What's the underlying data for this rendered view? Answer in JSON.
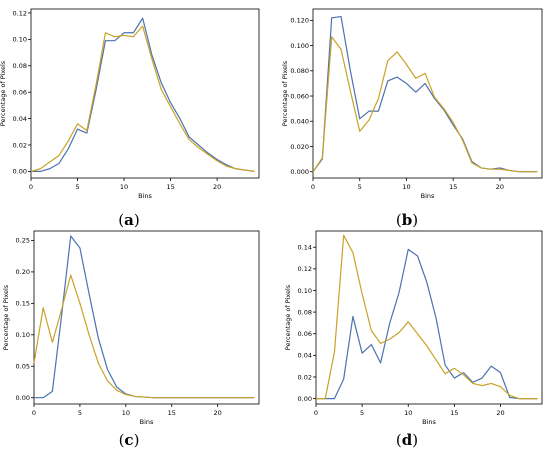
{
  "panel_labels": [
    "a",
    "b",
    "c",
    "d"
  ],
  "colors": {
    "series_1": "#4c72b0",
    "series_2": "#c9a227"
  },
  "chart_data": [
    {
      "type": "line",
      "panel": "a",
      "xlabel": "Bins",
      "ylabel": "Percentage of Pixels",
      "xlim": [
        0,
        24.5
      ],
      "ylim": [
        -0.005,
        0.123
      ],
      "xticks": [
        0,
        5,
        10,
        15,
        20
      ],
      "yticks": [
        0.0,
        0.02,
        0.04,
        0.06,
        0.08,
        0.1,
        0.12
      ],
      "ytick_decimals": 2,
      "x": [
        0,
        1,
        2,
        3,
        4,
        5,
        6,
        7,
        8,
        9,
        10,
        11,
        12,
        13,
        14,
        15,
        16,
        17,
        18,
        19,
        20,
        21,
        22,
        23,
        24
      ],
      "series": [
        {
          "values": [
            0.0,
            0.0,
            0.002,
            0.006,
            0.017,
            0.032,
            0.029,
            0.062,
            0.099,
            0.099,
            0.105,
            0.105,
            0.116,
            0.088,
            0.067,
            0.052,
            0.04,
            0.026,
            0.02,
            0.014,
            0.009,
            0.005,
            0.002,
            0.001,
            0.0
          ]
        },
        {
          "values": [
            0.0,
            0.002,
            0.007,
            0.012,
            0.023,
            0.036,
            0.031,
            0.066,
            0.105,
            0.102,
            0.103,
            0.102,
            0.11,
            0.085,
            0.062,
            0.049,
            0.036,
            0.024,
            0.018,
            0.013,
            0.008,
            0.004,
            0.002,
            0.001,
            0.0
          ]
        }
      ]
    },
    {
      "type": "line",
      "panel": "b",
      "xlabel": "Bins",
      "ylabel": "Percentage of Pixels",
      "xlim": [
        0,
        24.5
      ],
      "ylim": [
        -0.005,
        0.129
      ],
      "xticks": [
        0,
        5,
        10,
        15,
        20
      ],
      "yticks": [
        0.0,
        0.02,
        0.04,
        0.06,
        0.08,
        0.1,
        0.12
      ],
      "ytick_decimals": 3,
      "x": [
        0,
        1,
        2,
        3,
        4,
        5,
        6,
        7,
        8,
        9,
        10,
        11,
        12,
        13,
        14,
        15,
        16,
        17,
        18,
        19,
        20,
        21,
        22,
        23,
        24
      ],
      "series": [
        {
          "values": [
            0.0,
            0.01,
            0.122,
            0.123,
            0.08,
            0.042,
            0.048,
            0.048,
            0.072,
            0.075,
            0.07,
            0.063,
            0.07,
            0.058,
            0.049,
            0.037,
            0.026,
            0.008,
            0.003,
            0.002,
            0.003,
            0.001,
            0.0,
            0.0,
            0.0
          ]
        },
        {
          "values": [
            0.0,
            0.011,
            0.107,
            0.097,
            0.064,
            0.032,
            0.041,
            0.058,
            0.088,
            0.095,
            0.085,
            0.074,
            0.078,
            0.059,
            0.05,
            0.039,
            0.025,
            0.007,
            0.003,
            0.002,
            0.002,
            0.001,
            0.0,
            0.0,
            0.0
          ]
        }
      ]
    },
    {
      "type": "line",
      "panel": "c",
      "xlabel": "Bins",
      "ylabel": "Percentage of Pixels",
      "xlim": [
        0,
        24.5
      ],
      "ylim": [
        -0.01,
        0.265
      ],
      "xticks": [
        0,
        5,
        10,
        15,
        20
      ],
      "yticks": [
        0.0,
        0.05,
        0.1,
        0.15,
        0.2,
        0.25
      ],
      "ytick_decimals": 2,
      "x": [
        0,
        1,
        2,
        3,
        4,
        5,
        6,
        7,
        8,
        9,
        10,
        11,
        12,
        13,
        14,
        15,
        16,
        17,
        18,
        19,
        20,
        21,
        22,
        23,
        24
      ],
      "series": [
        {
          "values": [
            0.0,
            0.0,
            0.01,
            0.13,
            0.257,
            0.238,
            0.165,
            0.095,
            0.045,
            0.017,
            0.006,
            0.002,
            0.001,
            0.0,
            0.0,
            0.0,
            0.0,
            0.0,
            0.0,
            0.0,
            0.0,
            0.0,
            0.0,
            0.0,
            0.0
          ]
        },
        {
          "values": [
            0.055,
            0.143,
            0.088,
            0.14,
            0.195,
            0.15,
            0.1,
            0.055,
            0.027,
            0.012,
            0.005,
            0.002,
            0.001,
            0.0,
            0.0,
            0.0,
            0.0,
            0.0,
            0.0,
            0.0,
            0.0,
            0.0,
            0.0,
            0.0,
            0.0
          ]
        }
      ]
    },
    {
      "type": "line",
      "panel": "d",
      "xlabel": "Bins",
      "ylabel": "Percentage of Pixels",
      "xlim": [
        0,
        24.5
      ],
      "ylim": [
        -0.005,
        0.155
      ],
      "xticks": [
        0,
        5,
        10,
        15,
        20
      ],
      "yticks": [
        0.0,
        0.02,
        0.04,
        0.06,
        0.08,
        0.1,
        0.12,
        0.14
      ],
      "ytick_decimals": 2,
      "x": [
        0,
        1,
        2,
        3,
        4,
        5,
        6,
        7,
        8,
        9,
        10,
        11,
        12,
        13,
        14,
        15,
        16,
        17,
        18,
        19,
        20,
        21,
        22,
        23,
        24
      ],
      "series": [
        {
          "values": [
            0.0,
            0.0,
            0.0,
            0.018,
            0.076,
            0.042,
            0.05,
            0.033,
            0.07,
            0.098,
            0.138,
            0.132,
            0.108,
            0.075,
            0.031,
            0.019,
            0.024,
            0.015,
            0.019,
            0.03,
            0.024,
            0.001,
            0.0,
            0.0,
            0.0
          ]
        },
        {
          "values": [
            0.0,
            0.0,
            0.043,
            0.151,
            0.135,
            0.097,
            0.063,
            0.051,
            0.055,
            0.061,
            0.071,
            0.06,
            0.049,
            0.036,
            0.023,
            0.028,
            0.022,
            0.014,
            0.012,
            0.014,
            0.011,
            0.003,
            0.0,
            0.0,
            0.0
          ]
        }
      ]
    }
  ]
}
